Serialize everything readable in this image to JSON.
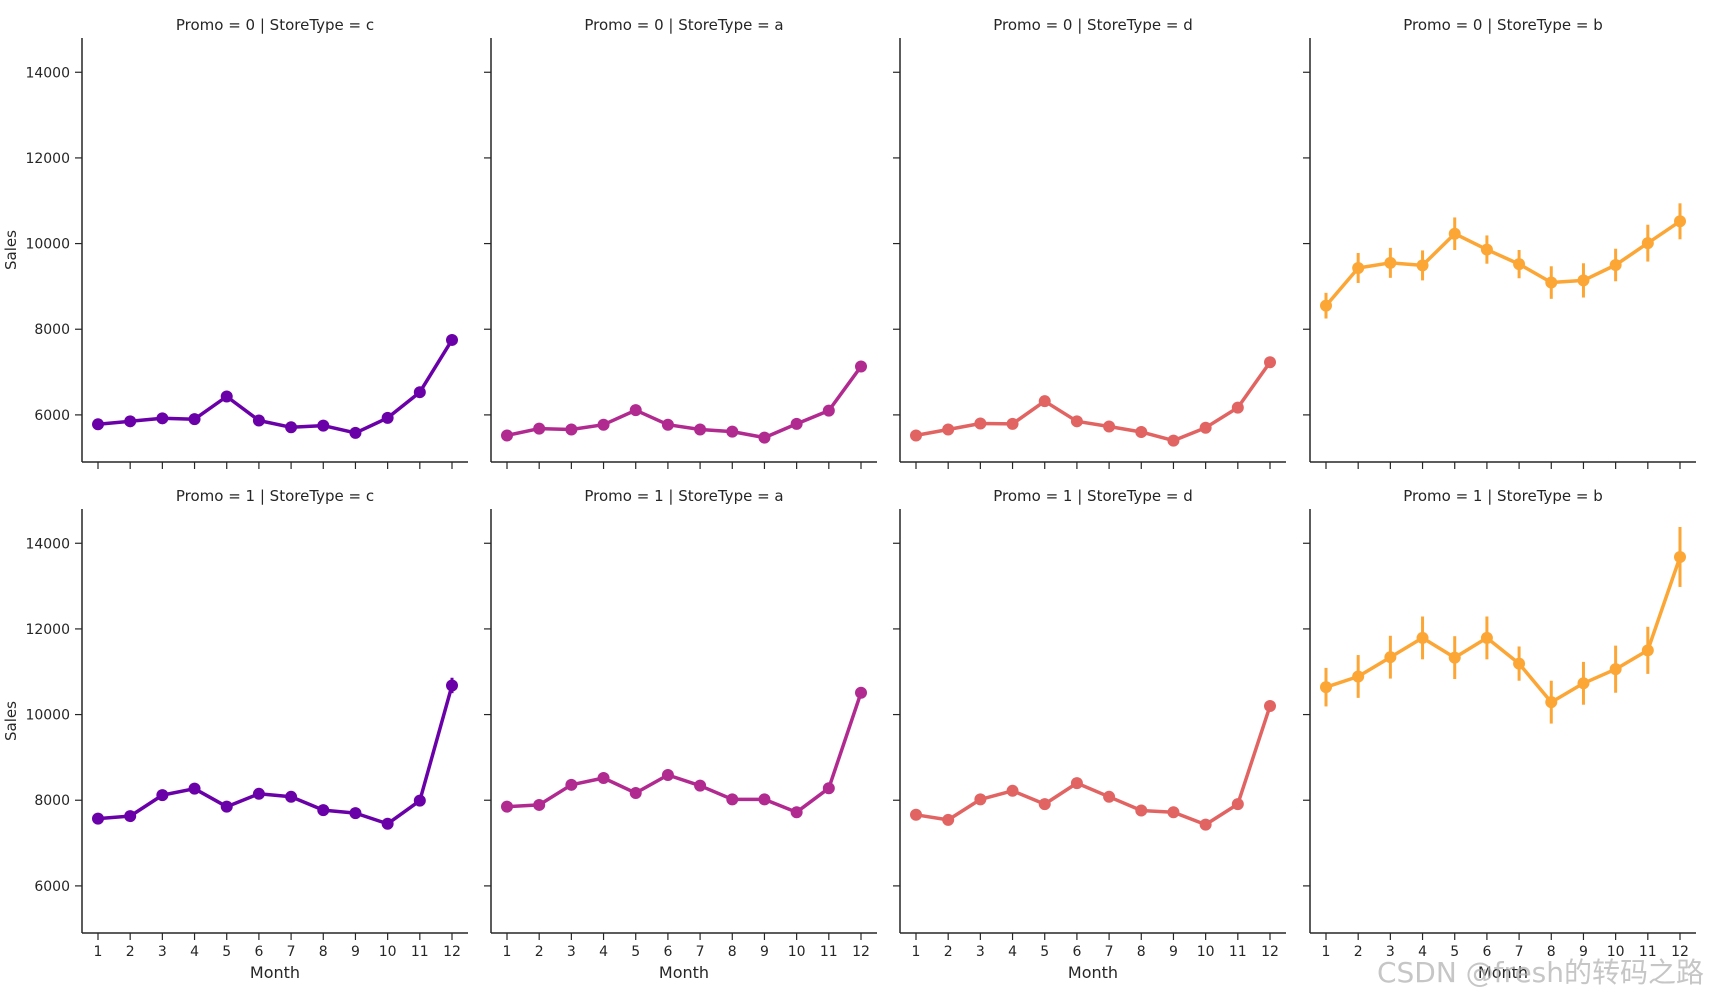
{
  "chart_data": {
    "type": "line",
    "grid": false,
    "x": [
      1,
      2,
      3,
      4,
      5,
      6,
      7,
      8,
      9,
      10,
      11,
      12
    ],
    "xlabel": "Month",
    "ylabel": "Sales",
    "yticks": [
      6000,
      8000,
      10000,
      12000,
      14000
    ],
    "colors": {
      "c": "#6a00a8",
      "a": "#b12a90",
      "d": "#e16462",
      "b": "#fca636"
    },
    "panels": [
      {
        "title": "Promo = 0 | StoreType = c",
        "store_type": "c",
        "promo": 0,
        "values": [
          5780,
          5850,
          5920,
          5900,
          6430,
          5870,
          5710,
          5750,
          5580,
          5930,
          6530,
          7750
        ],
        "err": [
          40,
          40,
          40,
          40,
          50,
          40,
          40,
          40,
          40,
          40,
          60,
          110
        ]
      },
      {
        "title": "Promo = 0 | StoreType = a",
        "store_type": "a",
        "promo": 0,
        "values": [
          5520,
          5680,
          5660,
          5770,
          6110,
          5770,
          5660,
          5610,
          5470,
          5790,
          6100,
          7130
        ],
        "err": [
          30,
          30,
          30,
          30,
          40,
          30,
          30,
          30,
          30,
          30,
          40,
          60
        ]
      },
      {
        "title": "Promo = 0 | StoreType = d",
        "store_type": "d",
        "promo": 0,
        "values": [
          5520,
          5660,
          5800,
          5790,
          6320,
          5850,
          5730,
          5600,
          5400,
          5700,
          6170,
          7230
        ],
        "err": [
          30,
          30,
          30,
          30,
          40,
          30,
          30,
          30,
          30,
          30,
          40,
          60
        ]
      },
      {
        "title": "Promo = 0 | StoreType = b",
        "store_type": "b",
        "promo": 0,
        "values": [
          8550,
          9430,
          9550,
          9490,
          10230,
          9860,
          9520,
          9090,
          9140,
          9500,
          10010,
          10520
        ],
        "err": [
          300,
          350,
          350,
          350,
          380,
          330,
          330,
          380,
          400,
          380,
          430,
          420
        ]
      },
      {
        "title": "Promo = 1 | StoreType = c",
        "store_type": "c",
        "promo": 1,
        "values": [
          7570,
          7630,
          8120,
          8270,
          7850,
          8150,
          8080,
          7770,
          7700,
          7450,
          7990,
          10680
        ],
        "err": [
          60,
          60,
          70,
          70,
          70,
          70,
          70,
          70,
          70,
          60,
          80,
          180
        ]
      },
      {
        "title": "Promo = 1 | StoreType = a",
        "store_type": "a",
        "promo": 1,
        "values": [
          7850,
          7890,
          8360,
          8520,
          8170,
          8590,
          8340,
          8020,
          8020,
          7720,
          8280,
          10510
        ],
        "err": [
          40,
          40,
          50,
          50,
          50,
          50,
          50,
          50,
          50,
          40,
          50,
          90
        ]
      },
      {
        "title": "Promo = 1 | StoreType = d",
        "store_type": "d",
        "promo": 1,
        "values": [
          7660,
          7540,
          8020,
          8220,
          7910,
          8400,
          8080,
          7760,
          7720,
          7430,
          7910,
          10200
        ],
        "err": [
          40,
          40,
          50,
          50,
          50,
          50,
          50,
          50,
          50,
          40,
          50,
          90
        ]
      },
      {
        "title": "Promo = 1 | StoreType = b",
        "store_type": "b",
        "promo": 1,
        "values": [
          10640,
          10890,
          11340,
          11790,
          11330,
          11790,
          11190,
          10290,
          10730,
          11060,
          11500,
          13680
        ],
        "err": [
          450,
          500,
          500,
          500,
          500,
          500,
          400,
          500,
          500,
          550,
          550,
          700
        ]
      }
    ]
  },
  "watermark": "CSDN @fresh的转码之路"
}
